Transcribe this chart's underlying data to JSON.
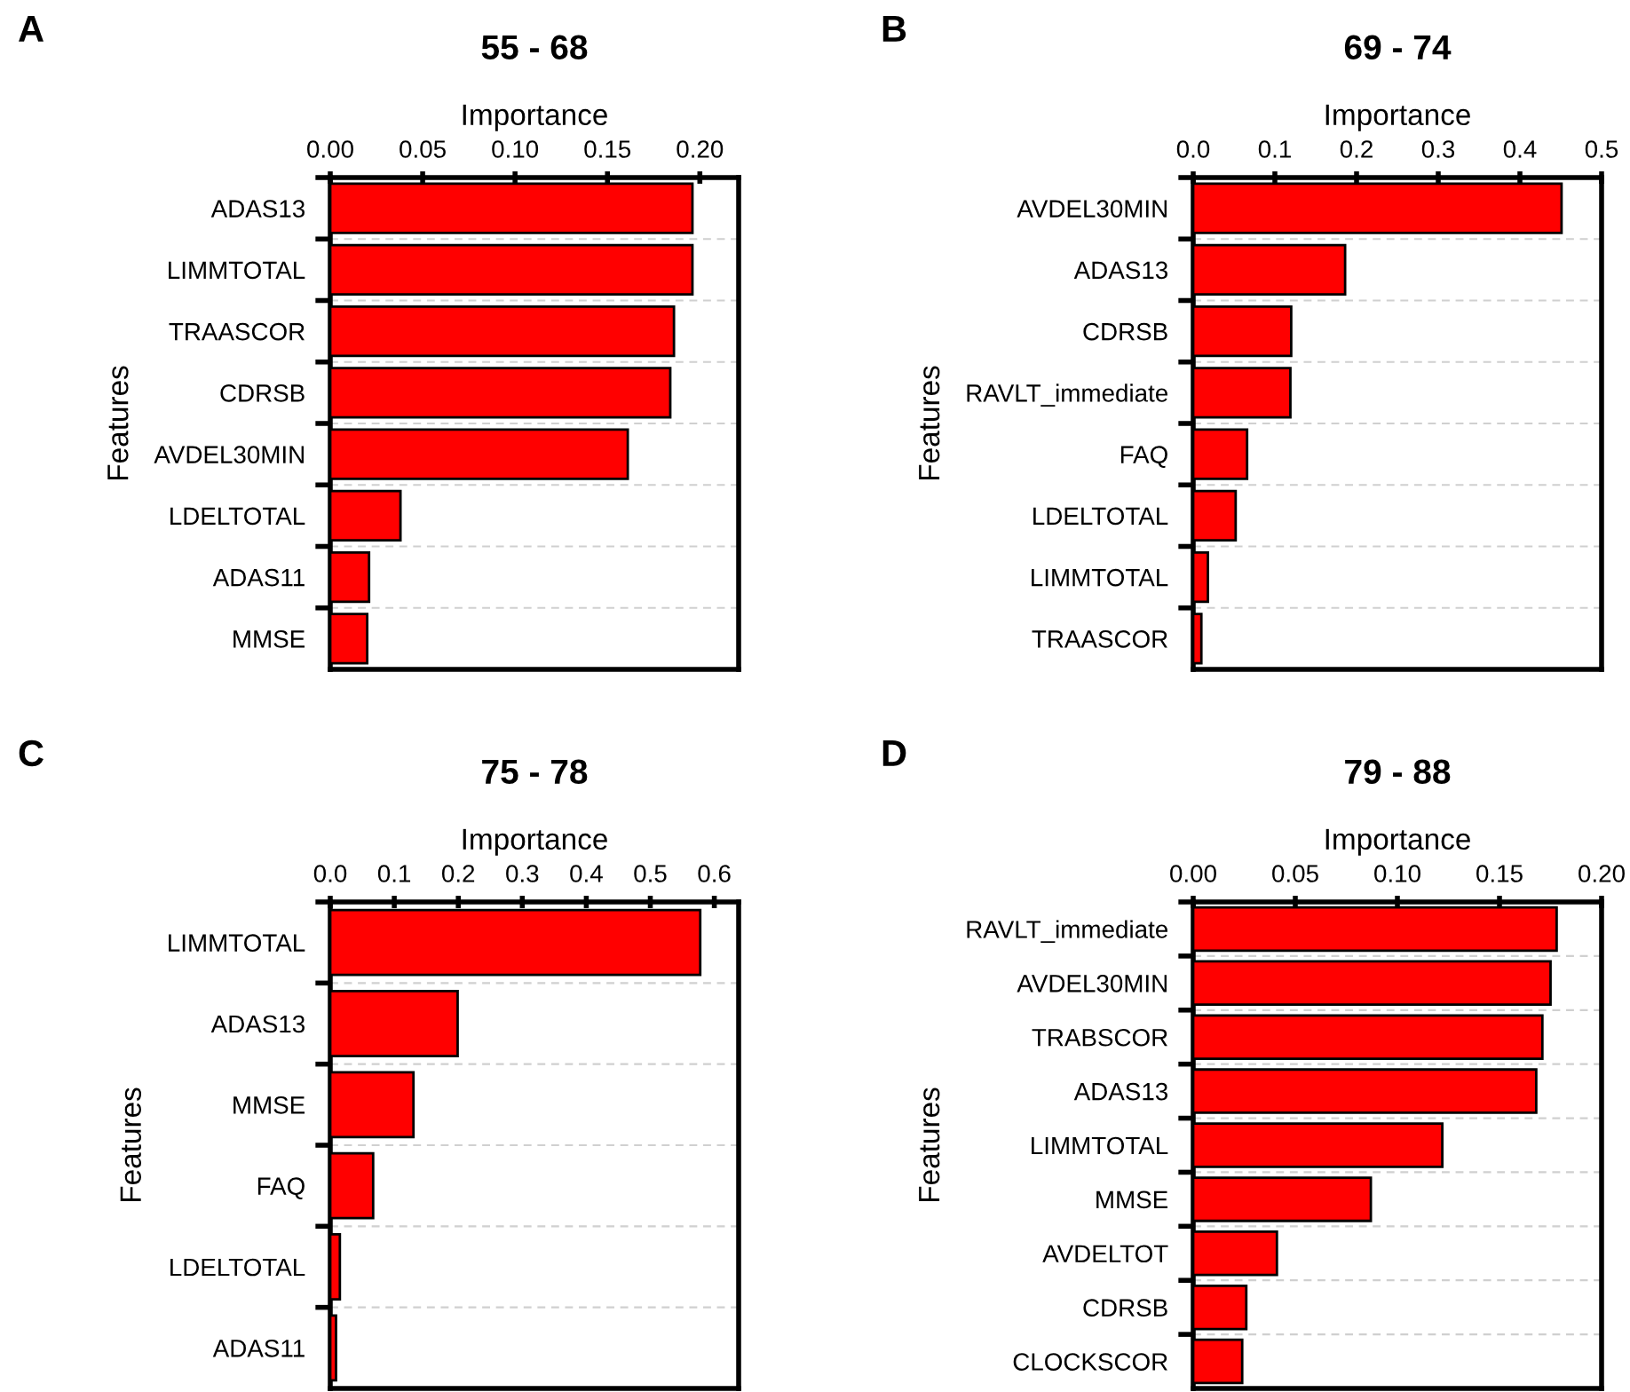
{
  "chart_data": [
    {
      "type": "bar",
      "orientation": "horizontal",
      "title": "55 - 68",
      "xlabel": "Importance",
      "ylabel": "Features",
      "annotations": [
        "A"
      ],
      "categories": [
        "ADAS13",
        "LIMMTOTAL",
        "TRAASCOR",
        "CDRSB",
        "AVDEL30MIN",
        "LDELTOTAL",
        "ADAS11",
        "MMSE"
      ],
      "values": [
        0.196,
        0.196,
        0.186,
        0.184,
        0.161,
        0.038,
        0.021,
        0.02
      ],
      "color": "#ff0000",
      "xlim": [
        0,
        0.221
      ],
      "xticks": [
        {
          "value": 0,
          "label": "0.00"
        },
        0.05,
        {
          "value": 0.1,
          "label": "0.10"
        },
        0.15,
        {
          "value": 0.2,
          "label": "0.20"
        }
      ],
      "grid": "y"
    },
    {
      "type": "bar",
      "orientation": "horizontal",
      "title": "69 - 74",
      "xlabel": "Importance",
      "ylabel": "Features",
      "annotations": [
        "B"
      ],
      "categories": [
        "AVDEL30MIN",
        "ADAS13",
        "CDRSB",
        "RAVLT_immediate",
        "FAQ",
        "LDELTOTAL",
        "LIMMTOTAL",
        "TRAASCOR"
      ],
      "values": [
        0.451,
        0.186,
        0.12,
        0.119,
        0.066,
        0.052,
        0.018,
        0.01
      ],
      "color": "#ff0000",
      "xlim": [
        0,
        0.5
      ],
      "xticks": [
        {
          "value": 0,
          "label": "0.0"
        },
        0.1,
        0.2,
        0.3,
        0.4,
        0.5
      ],
      "grid": "y"
    },
    {
      "type": "bar",
      "orientation": "horizontal",
      "title": "75 - 78",
      "xlabel": "Importance",
      "ylabel": "Features",
      "annotations": [
        "C"
      ],
      "categories": [
        "LIMMTOTAL",
        "ADAS13",
        "MMSE",
        "FAQ",
        "LDELTOTAL",
        "ADAS11"
      ],
      "values": [
        0.578,
        0.199,
        0.13,
        0.067,
        0.015,
        0.009
      ],
      "color": "#ff0000",
      "xlim": [
        0,
        0.638
      ],
      "xticks": [
        {
          "value": 0,
          "label": "0.0"
        },
        0.1,
        0.2,
        0.3,
        0.4,
        0.5,
        0.6
      ],
      "grid": "y"
    },
    {
      "type": "bar",
      "orientation": "horizontal",
      "title": "79 - 88",
      "xlabel": "Importance",
      "ylabel": "Features",
      "annotations": [
        "D"
      ],
      "categories": [
        "RAVLT_immediate",
        "AVDEL30MIN",
        "TRABSCOR",
        "ADAS13",
        "LIMMTOTAL",
        "MMSE",
        "AVDELTOT",
        "CDRSB",
        "CLOCKSCOR"
      ],
      "values": [
        0.178,
        0.175,
        0.171,
        0.168,
        0.122,
        0.087,
        0.041,
        0.026,
        0.024
      ],
      "color": "#ff0000",
      "xlim": [
        0,
        0.2
      ],
      "xticks": [
        {
          "value": 0,
          "label": "0.00"
        },
        0.05,
        {
          "value": 0.1,
          "label": "0.10"
        },
        0.15,
        {
          "value": 0.2,
          "label": "0.20"
        }
      ],
      "grid": "y"
    }
  ]
}
